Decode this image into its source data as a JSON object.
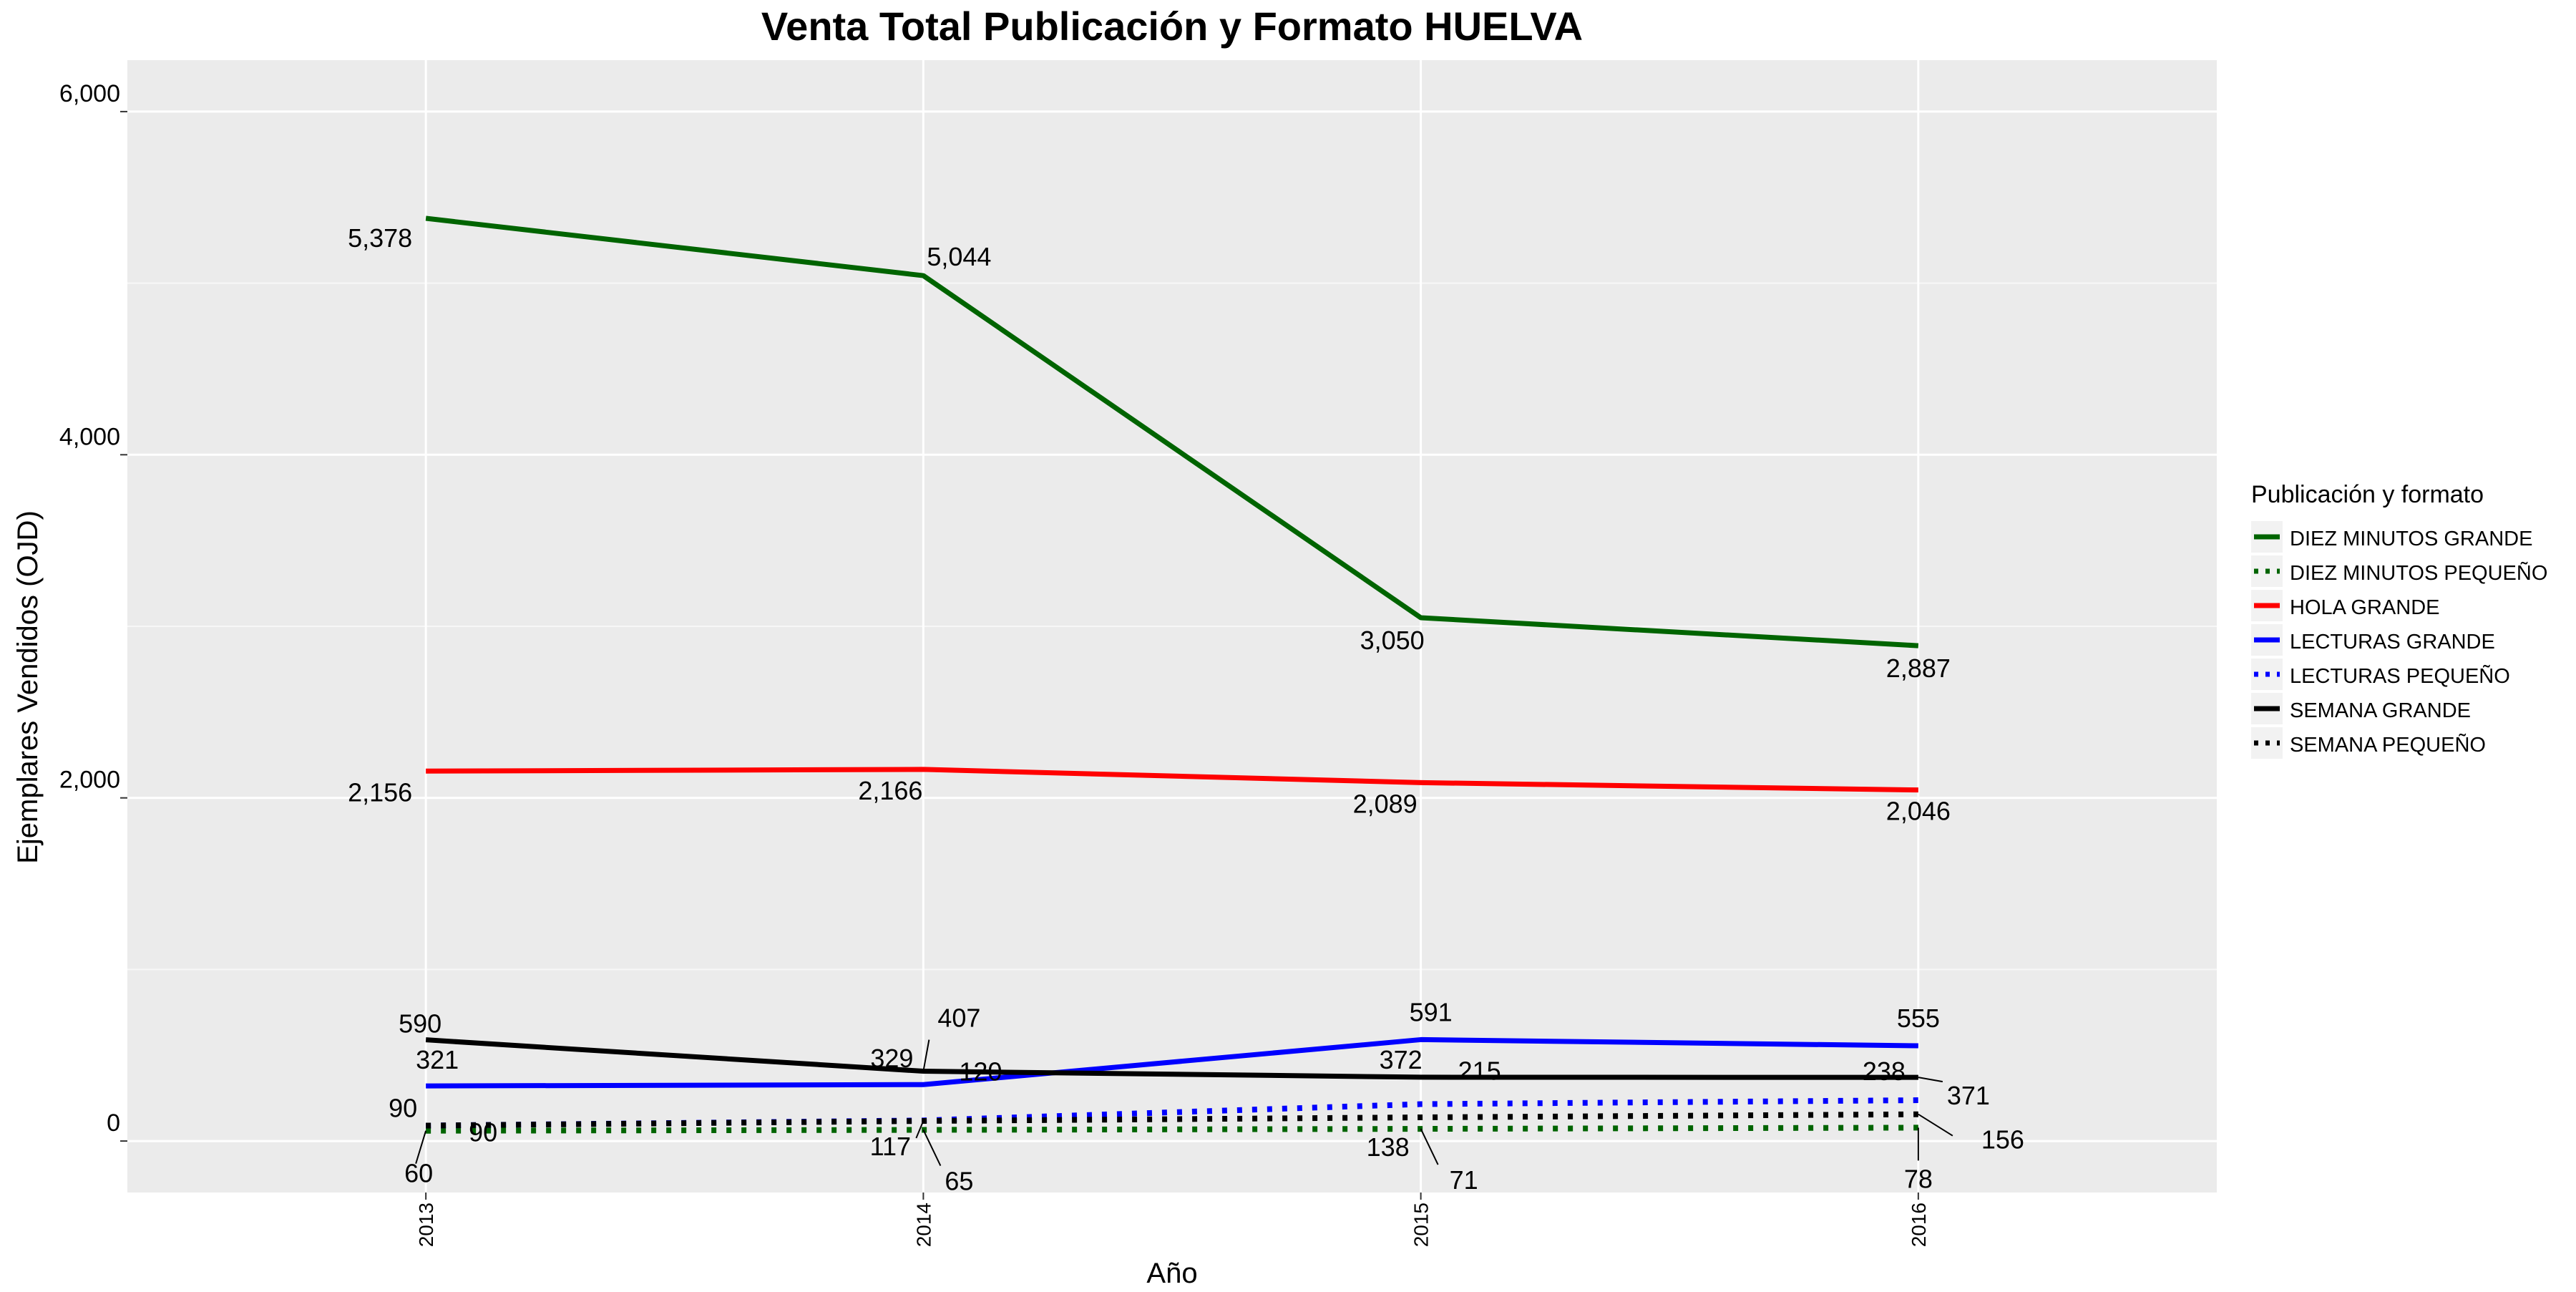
{
  "chart_data": {
    "type": "line",
    "title": "Venta Total Publicación y Formato  HUELVA",
    "xlabel": "Año",
    "ylabel": "Ejemplares Vendidos (OJD)",
    "x": [
      "2013",
      "2014",
      "2015",
      "2016"
    ],
    "x_numeric": [
      2013,
      2014,
      2015,
      2016
    ],
    "xlim": [
      2012.4,
      2016.6
    ],
    "ylim": [
      -300,
      6300
    ],
    "y_ticks": [
      0,
      2000,
      4000,
      6000
    ],
    "y_tick_labels": [
      "0",
      "2,000",
      "4,000",
      "6,000"
    ],
    "grid": true,
    "legend_title": "Publicación y formato",
    "legend_position": "right",
    "series": [
      {
        "name": "DIEZ MINUTOS GRANDE",
        "values": [
          5378,
          5044,
          3050,
          2887
        ],
        "labels": [
          "5,378",
          "5,044",
          "3,050",
          "2,887"
        ],
        "color": "#006400",
        "style": "solid"
      },
      {
        "name": "DIEZ MINUTOS PEQUEÑO",
        "values": [
          60,
          65,
          71,
          78
        ],
        "labels": [
          "60",
          "65",
          "71",
          "78"
        ],
        "color": "#006400",
        "style": "dotted"
      },
      {
        "name": "HOLA GRANDE",
        "values": [
          2156,
          2166,
          2089,
          2046
        ],
        "labels": [
          "2,156",
          "2,166",
          "2,089",
          "2,046"
        ],
        "color": "#ff0000",
        "style": "solid"
      },
      {
        "name": "LECTURAS GRANDE",
        "values": [
          321,
          329,
          591,
          555
        ],
        "labels": [
          "321",
          "329",
          "591",
          "555"
        ],
        "color": "#0000ff",
        "style": "solid"
      },
      {
        "name": "LECTURAS PEQUEÑO",
        "values": [
          90,
          120,
          215,
          238
        ],
        "labels": [
          "90",
          "120",
          "215",
          "238"
        ],
        "color": "#0000ff",
        "style": "dotted"
      },
      {
        "name": "SEMANA GRANDE",
        "values": [
          590,
          407,
          372,
          371
        ],
        "labels": [
          "590",
          "407",
          "372",
          "371"
        ],
        "color": "#000000",
        "style": "solid"
      },
      {
        "name": "SEMANA PEQUEÑO",
        "values": [
          90,
          117,
          138,
          156
        ],
        "labels": [
          "90",
          "117",
          "138",
          "156"
        ],
        "color": "#000000",
        "style": "dotted"
      }
    ]
  }
}
